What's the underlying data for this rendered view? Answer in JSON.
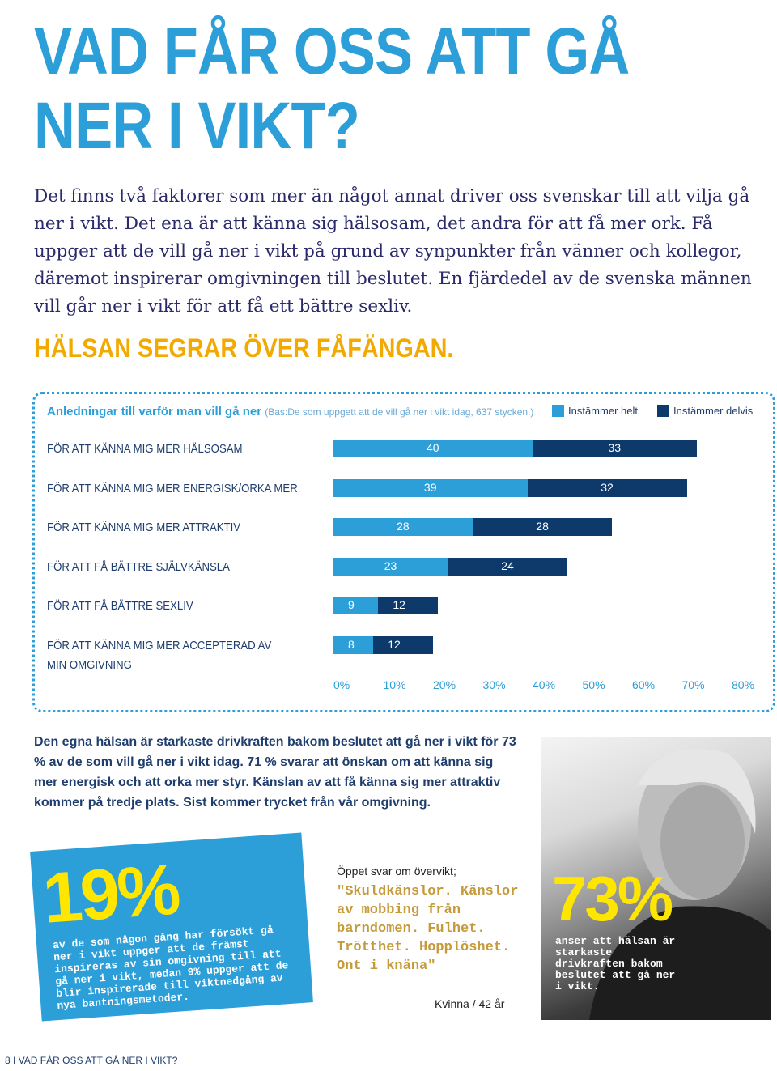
{
  "title_line1": "VAD FÅR OSS ATT GÅ",
  "title_line2": "NER I VIKT?",
  "intro": "Det finns två faktorer som mer än något annat driver oss svenskar till att vilja gå ner i vikt. Det ena är att känna sig hälsosam, det andra för att få mer ork. Få uppger att de vill gå ner i vikt på grund av synpunkter från vänner och kollegor, däremot inspirerar omgivningen till beslutet. En fjärdedel av de svenska männen vill går ner i vikt för att få ett bättre sexliv.",
  "subhead": "HÄLSAN SEGRAR ÖVER FÅFÄNGAN.",
  "colors": {
    "blue": "#2c9ed8",
    "navy": "#0e3a6b",
    "yellow": "#ffe600",
    "orange": "#f2a900"
  },
  "chart_data": {
    "type": "bar",
    "orientation": "horizontal",
    "stacked": true,
    "title": "Anledningar till varför man vill gå ner",
    "subtitle": "(Bas:De som uppgett att de vill gå ner i vikt idag, 637 stycken.)",
    "legend_position": "top-right",
    "categories": [
      "FÖR ATT KÄNNA MIG MER HÄLSOSAM",
      "FÖR ATT KÄNNA MIG MER ENERGISK/ORKA MER",
      "FÖR ATT KÄNNA MIG MER ATTRAKTIV",
      "FÖR ATT FÅ BÄTTRE SJÄLVKÄNSLA",
      "FÖR ATT FÅ BÄTTRE SEXLIV",
      [
        "FÖR ATT KÄNNA MIG MER ACCEPTERAD AV",
        "MIN OMGIVNING"
      ]
    ],
    "series": [
      {
        "name": "Instämmer helt",
        "values": [
          40,
          39,
          28,
          23,
          9,
          8
        ]
      },
      {
        "name": "Instämmer delvis",
        "values": [
          33,
          32,
          28,
          24,
          12,
          12
        ]
      }
    ],
    "xlim": [
      0,
      80
    ],
    "ticks": [
      "0%",
      "10%",
      "20%",
      "30%",
      "40%",
      "50%",
      "60%",
      "70%",
      "80%"
    ]
  },
  "summary": "Den egna hälsan är starkaste drivkraften bakom beslutet att gå ner i vikt för 73 % av de som vill gå ner i vikt idag. 71 % svarar att önskan om att känna sig mer energisk och att orka mer styr. Känslan av att få känna sig mer attraktiv kommer på tredje plats. Sist kommer trycket från vår omgivning.",
  "card19": {
    "value": "19%",
    "text": "av de som någon gång har försökt gå ner i vikt uppger att de främst inspireras av sin omgivning till att gå ner i vikt, medan 9% uppger att de blir inspirerade till viktnedgång av nya bantningsmetoder."
  },
  "quote": {
    "label": "Öppet svar om övervikt;",
    "text": "\"Skuldkänslor. Känslor av mobbing från barndomen. Fulhet. Trötthet. Hopplöshet. Ont i knäna\"",
    "author": "Kvinna / 42 år"
  },
  "card73": {
    "value": "73%",
    "text": "anser att hälsan är starkaste drivkraften bakom beslutet att gå ner i vikt."
  },
  "footer": "8 I VAD FÅR OSS ATT GÅ NER I VIKT?"
}
